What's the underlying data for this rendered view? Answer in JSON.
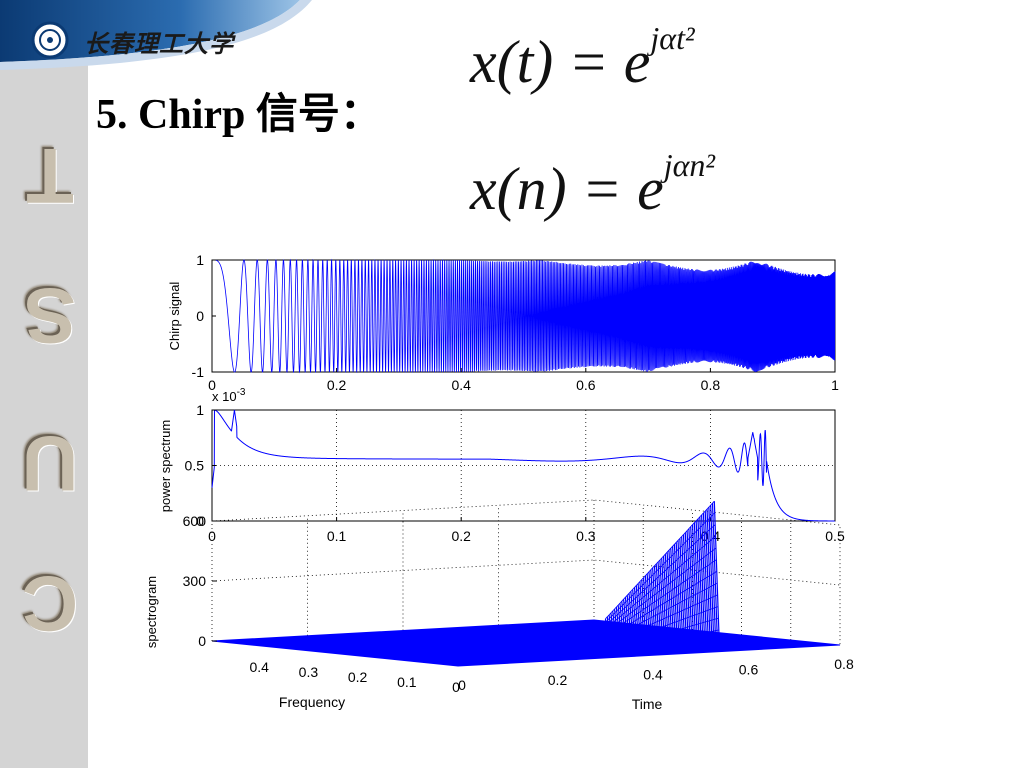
{
  "header": {
    "university_name": "长春理工大学"
  },
  "sidebar": {
    "letters": [
      "T",
      "S",
      "U",
      "C"
    ]
  },
  "slide": {
    "title": "5. Chirp 信号：",
    "formula1": {
      "lhs": "x(t) = e",
      "exp": "jαt²"
    },
    "formula2": {
      "lhs": "x(n) = e",
      "exp": "jαn²"
    }
  },
  "chart_data": [
    {
      "type": "line",
      "ylabel": "Chirp signal",
      "xlim": [
        0,
        1
      ],
      "ylim": [
        -1,
        1
      ],
      "xticks": [
        "0",
        "0.2",
        "0.4",
        "0.6",
        "0.8",
        "1"
      ],
      "yticks": [
        "-1",
        "0",
        "1"
      ],
      "grid": false,
      "series": [
        {
          "formula": "cos(alpha*t^2)",
          "t_range": [
            0,
            1
          ]
        }
      ],
      "color": "#0000ff"
    },
    {
      "type": "line",
      "ylabel": "power spectrum",
      "scale_label": "x 10",
      "scale_exp": "-3",
      "xlim": [
        0,
        0.5
      ],
      "ylim": [
        0,
        1
      ],
      "xticks": [
        "0",
        "0.1",
        "0.2",
        "0.3",
        "0.4",
        "0.5"
      ],
      "yticks": [
        "0",
        "0.5",
        "1"
      ],
      "grid": true,
      "color": "#0000ff"
    },
    {
      "type": "surface",
      "zlabel": "spectrogram",
      "xlabel": "Time",
      "ylabel": "Frequency",
      "zticks": [
        "0",
        "300",
        "600"
      ],
      "time_ticks": [
        "0",
        "0.2",
        "0.4",
        "0.6",
        "0.8"
      ],
      "freq_ticks": [
        "0",
        "0.1",
        "0.2",
        "0.3",
        "0.4"
      ],
      "grid": true,
      "color": "#0000ff"
    }
  ]
}
